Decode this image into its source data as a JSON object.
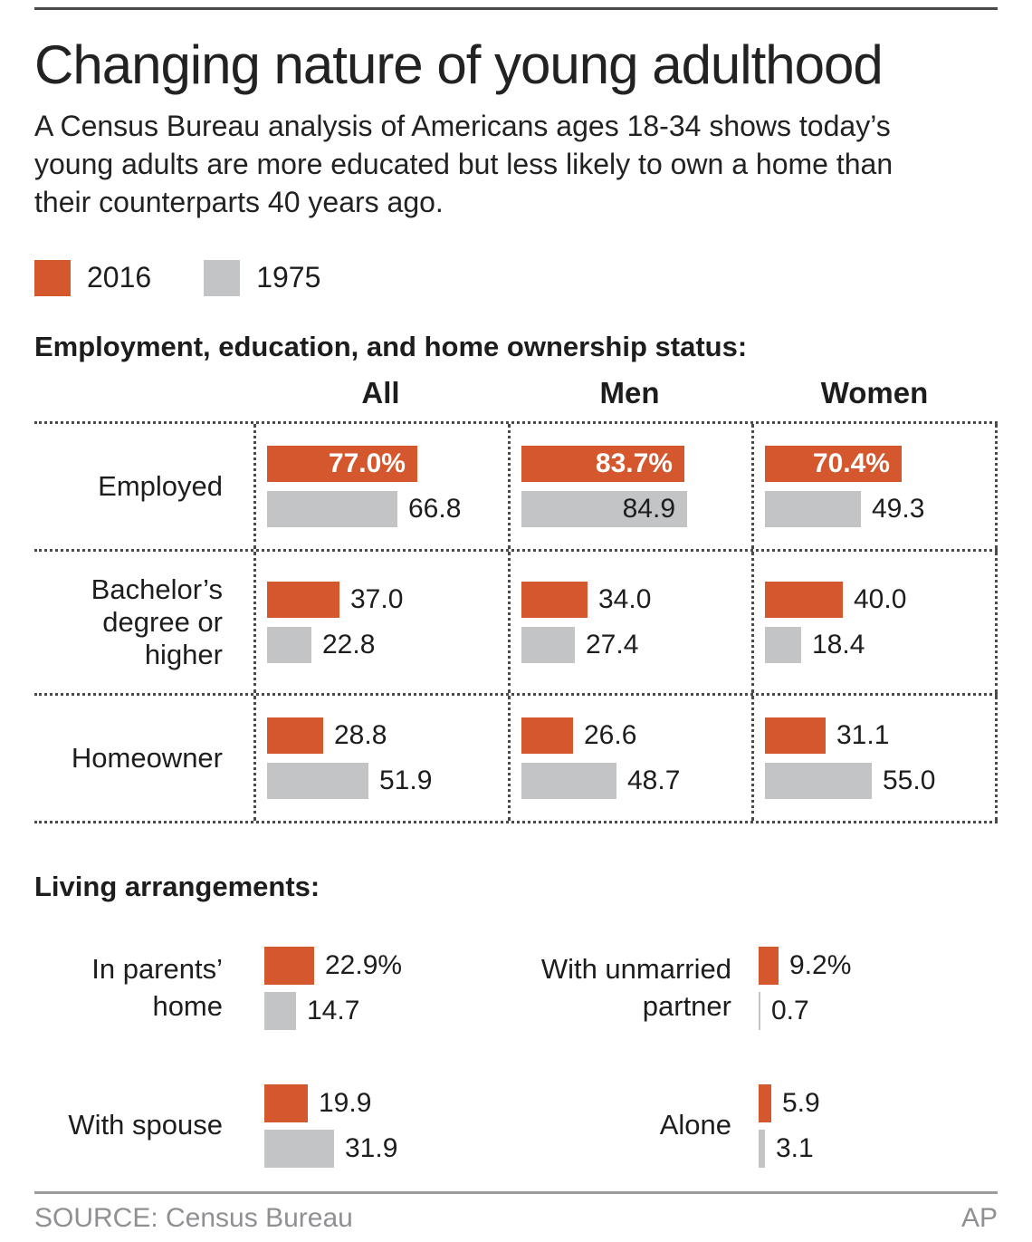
{
  "header": {
    "title": "Changing nature of young adulthood",
    "subtitle": "A Census Bureau analysis of Americans ages 18-34 shows today’s young adults are more educated but less likely to own a home than their counterparts 40 years ago."
  },
  "legend": {
    "items": [
      {
        "label": "2016",
        "color": "#d4572e"
      },
      {
        "label": "1975",
        "color": "#c3c4c6"
      }
    ]
  },
  "colors": {
    "2016": "#d4572e",
    "1975": "#c3c4c6",
    "text": "#1d1d1d",
    "muted_text": "#8f9093",
    "rule_dark": "#4a4a4a",
    "rule_light": "#9b9c9e",
    "dots": "#4b4b4b"
  },
  "chart_data": [
    {
      "type": "bar",
      "orientation": "horizontal",
      "title": "Employment, education, and home ownership status:",
      "unit": "percent",
      "axis_max": 100,
      "grid": "dotted",
      "series_names": [
        "2016",
        "1975"
      ],
      "columns": [
        "All",
        "Men",
        "Women"
      ],
      "rows": [
        {
          "label": "Employed",
          "cells": [
            {
              "column": "All",
              "bars": [
                {
                  "series": "2016",
                  "value": 77.0,
                  "label": "77.0%",
                  "label_inside": true
                },
                {
                  "series": "1975",
                  "value": 66.8,
                  "label": "66.8",
                  "label_inside": false
                }
              ]
            },
            {
              "column": "Men",
              "bars": [
                {
                  "series": "2016",
                  "value": 83.7,
                  "label": "83.7%",
                  "label_inside": true
                },
                {
                  "series": "1975",
                  "value": 84.9,
                  "label": "84.9",
                  "label_inside": true
                }
              ]
            },
            {
              "column": "Women",
              "bars": [
                {
                  "series": "2016",
                  "value": 70.4,
                  "label": "70.4%",
                  "label_inside": true
                },
                {
                  "series": "1975",
                  "value": 49.3,
                  "label": "49.3",
                  "label_inside": false
                }
              ]
            }
          ]
        },
        {
          "label": "Bachelor’s degree or higher",
          "cells": [
            {
              "column": "All",
              "bars": [
                {
                  "series": "2016",
                  "value": 37.0,
                  "label": "37.0",
                  "label_inside": false
                },
                {
                  "series": "1975",
                  "value": 22.8,
                  "label": "22.8",
                  "label_inside": false
                }
              ]
            },
            {
              "column": "Men",
              "bars": [
                {
                  "series": "2016",
                  "value": 34.0,
                  "label": "34.0",
                  "label_inside": false
                },
                {
                  "series": "1975",
                  "value": 27.4,
                  "label": "27.4",
                  "label_inside": false
                }
              ]
            },
            {
              "column": "Women",
              "bars": [
                {
                  "series": "2016",
                  "value": 40.0,
                  "label": "40.0",
                  "label_inside": false
                },
                {
                  "series": "1975",
                  "value": 18.4,
                  "label": "18.4",
                  "label_inside": false
                }
              ]
            }
          ]
        },
        {
          "label": "Homeowner",
          "cells": [
            {
              "column": "All",
              "bars": [
                {
                  "series": "2016",
                  "value": 28.8,
                  "label": "28.8",
                  "label_inside": false
                },
                {
                  "series": "1975",
                  "value": 51.9,
                  "label": "51.9",
                  "label_inside": false
                }
              ]
            },
            {
              "column": "Men",
              "bars": [
                {
                  "series": "2016",
                  "value": 26.6,
                  "label": "26.6",
                  "label_inside": false
                },
                {
                  "series": "1975",
                  "value": 48.7,
                  "label": "48.7",
                  "label_inside": false
                }
              ]
            },
            {
              "column": "Women",
              "bars": [
                {
                  "series": "2016",
                  "value": 31.1,
                  "label": "31.1",
                  "label_inside": false
                },
                {
                  "series": "1975",
                  "value": 55.0,
                  "label": "55.0",
                  "label_inside": false
                }
              ]
            }
          ]
        }
      ]
    },
    {
      "type": "bar",
      "orientation": "horizontal",
      "title": "Living arrangements:",
      "unit": "percent",
      "series_names": [
        "2016",
        "1975"
      ],
      "items": [
        {
          "label": "In parents’ home",
          "bars": [
            {
              "series": "2016",
              "value": 22.9,
              "label": "22.9%",
              "label_inside": false
            },
            {
              "series": "1975",
              "value": 14.7,
              "label": "14.7",
              "label_inside": false
            }
          ]
        },
        {
          "label": "With unmarried partner",
          "bars": [
            {
              "series": "2016",
              "value": 9.2,
              "label": "9.2%",
              "label_inside": false
            },
            {
              "series": "1975",
              "value": 0.7,
              "label": "0.7",
              "label_inside": false
            }
          ]
        },
        {
          "label": "With spouse",
          "bars": [
            {
              "series": "2016",
              "value": 19.9,
              "label": "19.9",
              "label_inside": false
            },
            {
              "series": "1975",
              "value": 31.9,
              "label": "31.9",
              "label_inside": false
            }
          ]
        },
        {
          "label": "Alone",
          "bars": [
            {
              "series": "2016",
              "value": 5.9,
              "label": "5.9",
              "label_inside": false
            },
            {
              "series": "1975",
              "value": 3.1,
              "label": "3.1",
              "label_inside": false
            }
          ]
        }
      ]
    }
  ],
  "footer": {
    "source": "SOURCE: Census Bureau",
    "credit": "AP"
  }
}
